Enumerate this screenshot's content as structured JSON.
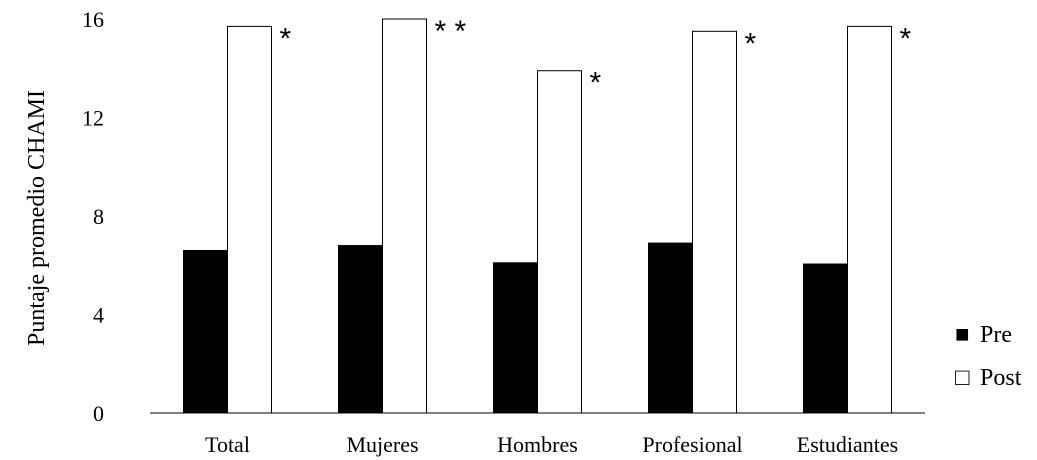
{
  "chart_data": {
    "type": "bar",
    "title": "",
    "xlabel": "",
    "ylabel": "Puntaje promedio CHAMI",
    "ylim": [
      0,
      16
    ],
    "yticks": [
      0,
      4,
      8,
      12,
      16
    ],
    "grid": false,
    "categories": [
      "Total",
      "Mujeres",
      "Hombres",
      "Profesional",
      "Estudiantes"
    ],
    "series": [
      {
        "name": "Pre",
        "values": [
          6.6,
          6.8,
          6.1,
          6.9,
          6.05
        ],
        "color": "#000000"
      },
      {
        "name": "Post",
        "values": [
          15.7,
          16.0,
          13.9,
          15.5,
          15.7
        ],
        "color": "#ffffff"
      }
    ],
    "annotations": [
      "*",
      "* *",
      "*",
      "*",
      "*"
    ],
    "legend": {
      "placement": "right",
      "entries": [
        {
          "symbol": "■",
          "label": "Pre"
        },
        {
          "symbol": "□",
          "label": "Post"
        }
      ]
    }
  }
}
